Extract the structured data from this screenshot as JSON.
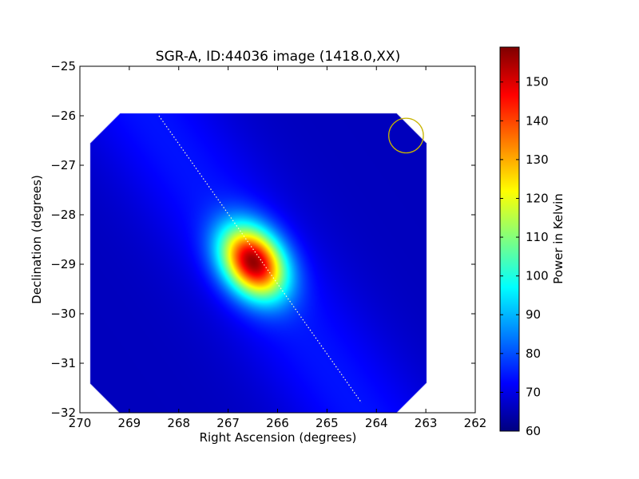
{
  "chart_data": {
    "type": "heatmap",
    "title": "SGR-A, ID:44036 image (1418.0,XX)",
    "xlabel": "Right Ascension (degrees)",
    "ylabel": "Declination (degrees)",
    "xlim": [
      270,
      262
    ],
    "ylim": [
      -32,
      -25
    ],
    "x_ticks": [
      "270",
      "269",
      "268",
      "267",
      "266",
      "265",
      "264",
      "263",
      "262"
    ],
    "y_ticks": [
      "−25",
      "−26",
      "−27",
      "−28",
      "−29",
      "−30",
      "−31",
      "−32"
    ],
    "colormap": "jet",
    "colorbar": {
      "label": "Power in Kelvin",
      "range": [
        60,
        159
      ],
      "ticks": [
        "60",
        "70",
        "80",
        "90",
        "100",
        "110",
        "120",
        "130",
        "140",
        "150"
      ]
    },
    "data_extent": {
      "ra": [
        269.8,
        263.0
      ],
      "dec": [
        -32.0,
        -25.95
      ]
    },
    "peak": {
      "ra": 266.5,
      "dec": -28.95,
      "value": 157
    },
    "background_value": 66,
    "galactic_ridge": {
      "from": [
        268.4,
        -26.0
      ],
      "to": [
        264.3,
        -31.8
      ],
      "value": 74
    },
    "scan_line": {
      "from": [
        268.4,
        -26.0
      ],
      "to": [
        264.3,
        -31.8
      ],
      "color": "#ffffcc",
      "style": "dotted"
    },
    "beam_circle": {
      "ra": 263.4,
      "dec": -26.4,
      "radius_deg": 0.35,
      "color": "#c8b400"
    }
  }
}
